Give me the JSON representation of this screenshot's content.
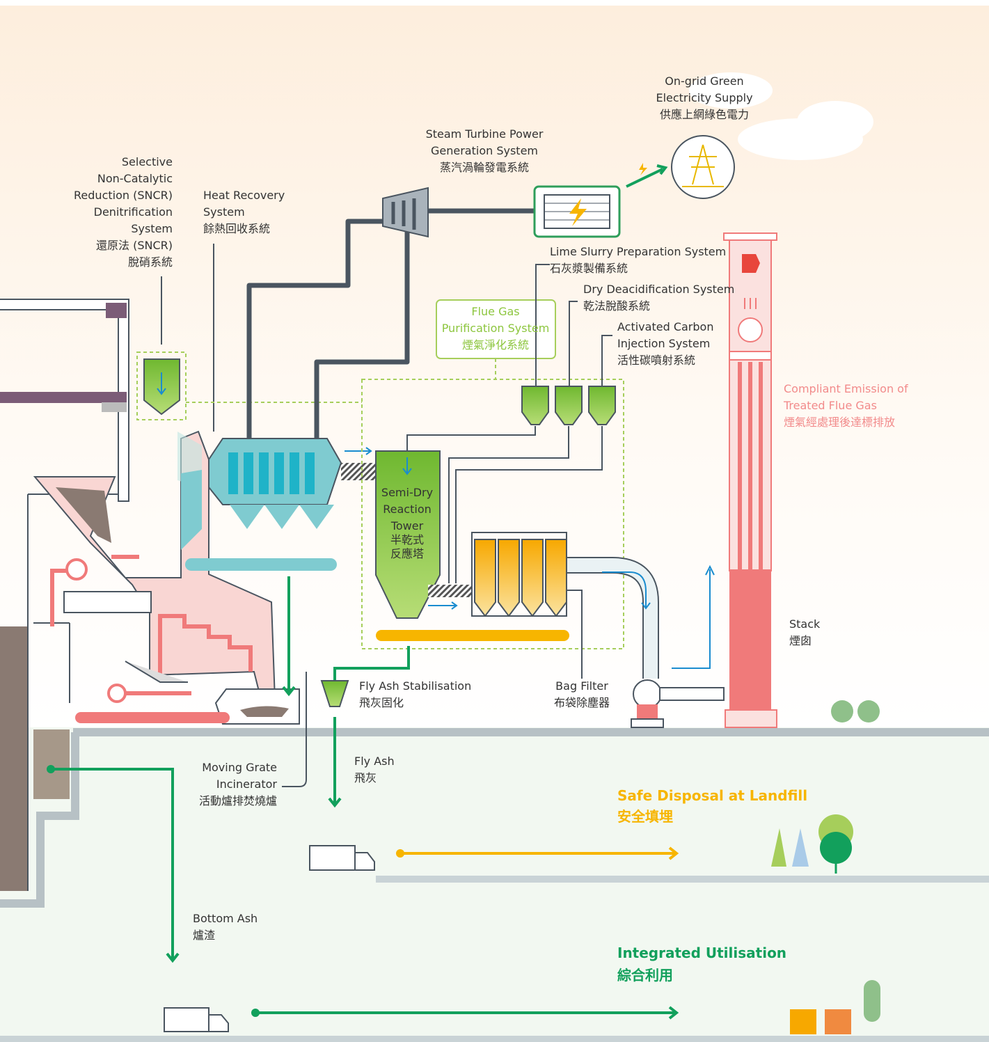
{
  "labels": {
    "grid": [
      "On-grid Green",
      "Electricity Supply",
      "供應上網綠色電力"
    ],
    "turbine": [
      "Steam Turbine Power",
      "Generation System",
      "蒸汽渦輪發電系統"
    ],
    "sncr": [
      "Selective",
      "Non-Catalytic",
      "Reduction (SNCR)",
      "Denitrification",
      "System",
      "還原法 (SNCR)",
      "脫硝系統"
    ],
    "heat": [
      "Heat Recovery",
      "System",
      "餘熱回收系統"
    ],
    "lime": [
      "Lime Slurry Preparation System",
      "石灰漿製備系統"
    ],
    "dry": [
      "Dry Deacidification System",
      "乾法脫酸系統"
    ],
    "carbon": [
      "Activated Carbon",
      "Injection System",
      "活性碳噴射系統"
    ],
    "purification": [
      "Flue Gas",
      "Purification System",
      "煙氣淨化系統"
    ],
    "emission": [
      "Compliant Emission of",
      "Treated Flue Gas",
      "煙氣經處理後達標排放"
    ],
    "tower": [
      "Semi-Dry",
      "Reaction",
      "Tower",
      "半乾式",
      "反應塔"
    ],
    "stack": [
      "Stack",
      "煙囱"
    ],
    "stabilisation": [
      "Fly Ash Stabilisation",
      "飛灰固化"
    ],
    "bag": [
      "Bag Filter",
      "布袋除塵器"
    ],
    "grate": [
      "Moving Grate",
      "Incinerator",
      "活動爐排焚燒爐"
    ],
    "flyash": [
      "Fly Ash",
      "飛灰"
    ],
    "landfill": [
      "Safe Disposal at Landfill",
      "安全填埋"
    ],
    "bottomash": [
      "Bottom Ash",
      "爐渣"
    ],
    "utilisation": [
      "Integrated Utilisation",
      "綜合利用"
    ]
  }
}
